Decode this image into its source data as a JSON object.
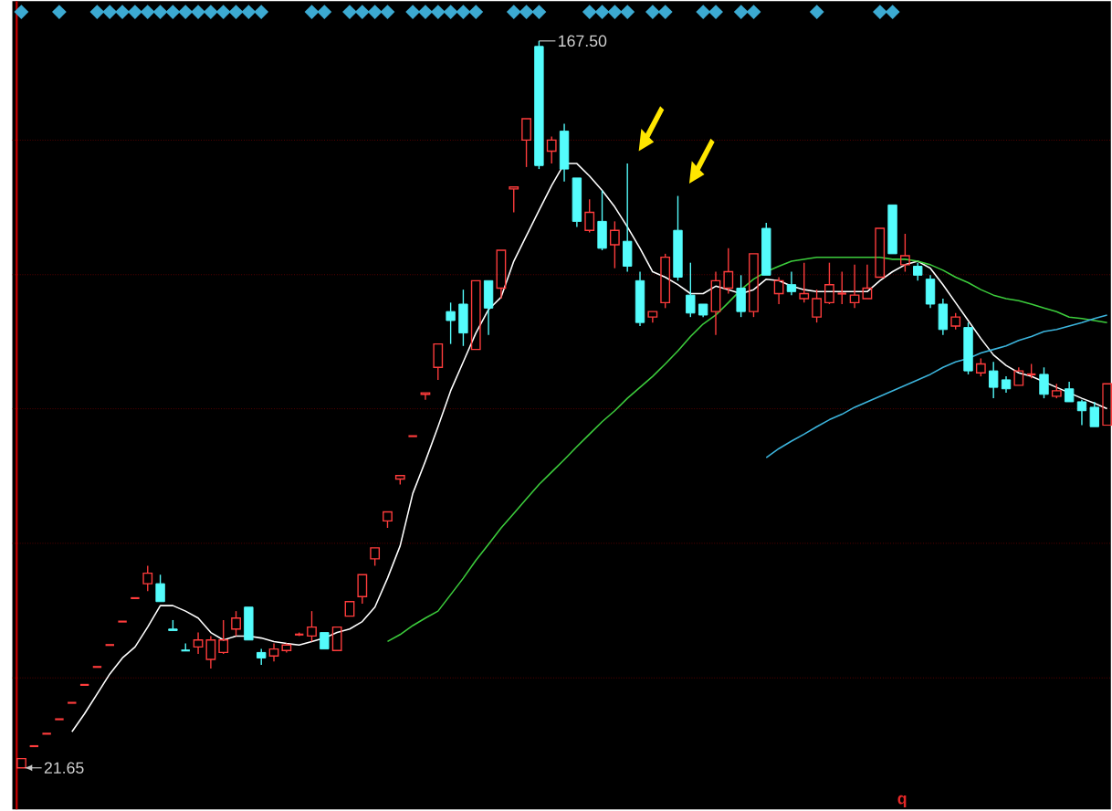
{
  "chart_data": {
    "type": "candlestick",
    "categories": [
      null,
      null,
      null,
      null,
      null,
      null,
      null,
      null,
      null,
      null,
      null,
      null,
      null,
      null,
      null,
      null,
      null,
      null,
      null,
      null,
      null,
      null,
      null,
      null,
      null,
      null,
      null,
      null,
      null,
      null,
      null,
      null,
      null,
      null,
      null,
      null,
      null,
      null,
      null,
      null,
      null,
      null,
      null,
      null,
      null,
      null,
      null,
      null,
      null,
      null,
      null,
      null,
      null,
      null,
      null,
      null,
      null,
      null,
      null,
      null,
      null,
      null,
      null,
      null,
      null,
      null,
      null,
      null,
      null,
      null,
      null,
      null,
      null,
      null,
      null,
      null,
      null,
      null,
      null,
      null,
      null,
      null,
      null,
      null,
      null,
      null,
      null
    ],
    "ylim": [
      13.3,
      175.5
    ],
    "yticks": [
      {
        "value": 39.7,
        "label": null
      },
      {
        "value": 66.7,
        "label": null
      },
      {
        "value": 93.7,
        "label": null
      },
      {
        "value": 120.6,
        "label": null
      },
      {
        "value": 147.6,
        "label": null
      }
    ],
    "grid": "y",
    "ohlc": [
      [
        21.65,
        23.5,
        21.65,
        23.5
      ],
      [
        26.0,
        26.0,
        26.0,
        26.0
      ],
      [
        28.5,
        28.5,
        28.5,
        28.5
      ],
      [
        31.4,
        31.4,
        31.4,
        31.4
      ],
      [
        34.7,
        34.7,
        34.7,
        34.7
      ],
      [
        38.3,
        38.3,
        38.3,
        38.3
      ],
      [
        41.9,
        41.9,
        41.9,
        41.9
      ],
      [
        46.3,
        46.3,
        46.3,
        46.3
      ],
      [
        51.0,
        51.0,
        51.0,
        51.0
      ],
      [
        55.7,
        55.7,
        55.7,
        55.7
      ],
      [
        58.6,
        62.2,
        57.1,
        60.7
      ],
      [
        58.6,
        60.4,
        55.0,
        55.0
      ],
      [
        49.5,
        51.3,
        49.2,
        49.2
      ],
      [
        45.2,
        46.6,
        45.2,
        45.2
      ],
      [
        45.9,
        48.8,
        44.5,
        47.3
      ],
      [
        43.4,
        48.1,
        41.6,
        47.3
      ],
      [
        44.8,
        51.3,
        44.5,
        47.3
      ],
      [
        49.5,
        53.1,
        48.1,
        51.7
      ],
      [
        53.9,
        53.9,
        47.3,
        47.3
      ],
      [
        44.8,
        45.5,
        42.3,
        43.7
      ],
      [
        44.1,
        46.6,
        43.0,
        45.5
      ],
      [
        45.2,
        46.6,
        44.8,
        46.3
      ],
      [
        48.4,
        48.8,
        48.1,
        48.4
      ],
      [
        48.1,
        53.1,
        47.0,
        49.9
      ],
      [
        48.8,
        48.8,
        45.5,
        45.5
      ],
      [
        45.2,
        49.9,
        45.2,
        49.9
      ],
      [
        52.1,
        55.0,
        52.1,
        55.0
      ],
      [
        56.0,
        60.4,
        54.6,
        60.4
      ],
      [
        63.6,
        65.8,
        62.2,
        65.8
      ],
      [
        71.2,
        73.0,
        69.8,
        73.0
      ],
      [
        79.6,
        80.3,
        78.5,
        80.3
      ],
      [
        88.2,
        88.2,
        88.2,
        88.2
      ],
      [
        96.6,
        96.9,
        95.5,
        96.9
      ],
      [
        102.0,
        106.7,
        99.5,
        106.7
      ],
      [
        113.2,
        115.0,
        106.7,
        111.4
      ],
      [
        114.7,
        117.6,
        106.3,
        108.9
      ],
      [
        105.6,
        119.4,
        105.6,
        119.4
      ],
      [
        119.4,
        119.4,
        108.5,
        113.9
      ],
      [
        117.9,
        125.5,
        115.8,
        125.5
      ],
      [
        137.8,
        138.2,
        133.1,
        138.2
      ],
      [
        147.6,
        151.9,
        142.2,
        151.9
      ],
      [
        166.4,
        167.5,
        141.8,
        142.5
      ],
      [
        145.4,
        148.3,
        142.9,
        147.6
      ],
      [
        149.4,
        150.9,
        139.3,
        141.8
      ],
      [
        140.0,
        140.0,
        130.2,
        131.3
      ],
      [
        129.5,
        135.7,
        129.1,
        133.1
      ],
      [
        131.3,
        137.5,
        125.5,
        125.9
      ],
      [
        126.6,
        131.3,
        121.9,
        129.5
      ],
      [
        127.3,
        142.9,
        121.2,
        122.3
      ],
      [
        119.4,
        121.2,
        110.3,
        111.0
      ],
      [
        112.1,
        113.2,
        111.0,
        113.2
      ],
      [
        115.0,
        124.8,
        113.9,
        124.1
      ],
      [
        129.5,
        136.4,
        119.4,
        120.1
      ],
      [
        116.5,
        123.0,
        112.1,
        112.9
      ],
      [
        114.7,
        114.7,
        112.1,
        112.5
      ],
      [
        113.2,
        121.2,
        108.5,
        119.4
      ],
      [
        117.9,
        125.9,
        116.8,
        121.2
      ],
      [
        117.9,
        120.5,
        112.1,
        113.2
      ],
      [
        113.2,
        124.8,
        112.1,
        124.8
      ],
      [
        129.9,
        131.0,
        120.5,
        120.5
      ],
      [
        116.8,
        120.1,
        114.7,
        119.4
      ],
      [
        118.6,
        121.2,
        116.5,
        117.2
      ],
      [
        115.8,
        123.0,
        115.0,
        116.8
      ],
      [
        112.1,
        117.6,
        111.0,
        115.8
      ],
      [
        115.0,
        123.0,
        114.7,
        118.6
      ],
      [
        116.8,
        121.2,
        114.7,
        116.8
      ],
      [
        115.0,
        122.6,
        113.9,
        116.5
      ],
      [
        115.8,
        122.6,
        115.8,
        117.9
      ],
      [
        120.1,
        129.9,
        120.1,
        129.9
      ],
      [
        134.6,
        134.6,
        124.8,
        124.8
      ],
      [
        122.6,
        128.8,
        121.2,
        124.4
      ],
      [
        122.3,
        123.0,
        119.4,
        120.5
      ],
      [
        119.7,
        120.5,
        113.9,
        114.7
      ],
      [
        114.7,
        115.8,
        108.5,
        109.6
      ],
      [
        110.3,
        112.9,
        109.6,
        112.1
      ],
      [
        110.0,
        111.0,
        100.6,
        101.3
      ],
      [
        100.9,
        103.8,
        100.2,
        102.7
      ],
      [
        101.3,
        103.1,
        95.8,
        98.0
      ],
      [
        99.5,
        100.2,
        96.9,
        97.7
      ],
      [
        98.4,
        102.0,
        98.4,
        101.3
      ],
      [
        100.6,
        102.7,
        99.8,
        100.6
      ],
      [
        100.6,
        102.0,
        95.8,
        96.6
      ],
      [
        96.2,
        98.7,
        95.8,
        97.3
      ],
      [
        97.7,
        99.1,
        95.1,
        95.1
      ],
      [
        95.1,
        95.5,
        90.4,
        93.3
      ],
      [
        94.0,
        95.1,
        90.1,
        90.1
      ],
      [
        90.4,
        98.7,
        90.4,
        98.7
      ]
    ],
    "colors": [
      "#ff3c3c",
      "#ff3c3c",
      "#ff3c3c",
      "#ff3c3c",
      "#ff3c3c",
      "#ff3c3c",
      "#ff3c3c",
      "#ff3c3c",
      "#ff3c3c",
      "#ff3c3c",
      "#ff3c3c",
      "#54fcfc",
      "#54fcfc",
      "#54fcfc",
      "#ff3c3c",
      "#ff3c3c",
      "#ff3c3c",
      "#ff3c3c",
      "#54fcfc",
      "#54fcfc",
      "#ff3c3c",
      "#ff3c3c",
      "#ff3c3c",
      "#ff3c3c",
      "#54fcfc",
      "#ff3c3c",
      "#ff3c3c",
      "#ff3c3c",
      "#ff3c3c",
      "#ff3c3c",
      "#ff3c3c",
      "#ff3c3c",
      "#ff3c3c",
      "#ff3c3c",
      "#54fcfc",
      "#54fcfc",
      "#ff3c3c",
      "#54fcfc",
      "#ff3c3c",
      "#ff3c3c",
      "#ff3c3c",
      "#54fcfc",
      "#ff3c3c",
      "#54fcfc",
      "#54fcfc",
      "#ff3c3c",
      "#54fcfc",
      "#ff3c3c",
      "#54fcfc",
      "#54fcfc",
      "#ff3c3c",
      "#ff3c3c",
      "#54fcfc",
      "#54fcfc",
      "#54fcfc",
      "#ff3c3c",
      "#ff3c3c",
      "#54fcfc",
      "#ff3c3c",
      "#54fcfc",
      "#ff3c3c",
      "#54fcfc",
      "#ff3c3c",
      "#ff3c3c",
      "#ff3c3c",
      "#ff3c3c",
      "#ff3c3c",
      "#ff3c3c",
      "#ff3c3c",
      "#54fcfc",
      "#ff3c3c",
      "#54fcfc",
      "#54fcfc",
      "#54fcfc",
      "#ff3c3c",
      "#54fcfc",
      "#ff3c3c",
      "#54fcfc",
      "#54fcfc",
      "#ff3c3c",
      "#ff3c3c",
      "#54fcfc",
      "#ff3c3c",
      "#54fcfc",
      "#54fcfc",
      "#54fcfc",
      "#ff3c3c"
    ],
    "series": [
      {
        "type": "line",
        "color": "#ffffff",
        "values": [
          null,
          null,
          null,
          null,
          28.9,
          32.5,
          36.5,
          40.5,
          43.7,
          45.9,
          49.9,
          54.2,
          54.2,
          53.1,
          51.7,
          48.8,
          47.3,
          48.1,
          48.1,
          47.7,
          47.0,
          46.6,
          46.3,
          47.0,
          47.7,
          48.8,
          49.5,
          51.0,
          53.9,
          59.7,
          66.2,
          76.7,
          83.2,
          90.1,
          97.3,
          103.1,
          108.9,
          113.6,
          116.1,
          123.3,
          128.4,
          133.5,
          138.5,
          142.9,
          142.9,
          140.4,
          137.5,
          134.2,
          130.2,
          125.9,
          121.2,
          120.1,
          118.6,
          116.8,
          116.8,
          118.3,
          117.6,
          116.8,
          117.6,
          119.7,
          119.4,
          118.3,
          117.6,
          117.2,
          117.2,
          117.2,
          117.2,
          117.2,
          119.4,
          121.2,
          122.6,
          123.3,
          121.9,
          118.6,
          115.0,
          111.4,
          107.8,
          104.5,
          102.4,
          100.9,
          100.2,
          99.1,
          98.0,
          96.9,
          95.8,
          94.8,
          93.7
        ]
      },
      {
        "type": "line",
        "color": "#3ccc3c",
        "values": [
          null,
          null,
          null,
          null,
          null,
          null,
          null,
          null,
          null,
          null,
          null,
          null,
          null,
          null,
          null,
          null,
          null,
          null,
          null,
          null,
          null,
          null,
          null,
          null,
          null,
          null,
          null,
          null,
          null,
          47.0,
          48.4,
          50.2,
          51.7,
          53.1,
          56.4,
          59.7,
          63.3,
          66.5,
          69.8,
          72.7,
          75.6,
          78.5,
          81.0,
          83.5,
          86.1,
          88.6,
          91.1,
          93.3,
          95.8,
          98.0,
          100.2,
          102.7,
          105.3,
          108.2,
          110.7,
          112.5,
          115.0,
          117.6,
          119.7,
          121.2,
          122.3,
          123.3,
          123.7,
          124.1,
          124.1,
          124.1,
          124.1,
          124.1,
          124.1,
          123.7,
          123.7,
          123.3,
          122.6,
          121.5,
          120.1,
          119.0,
          117.6,
          116.5,
          115.8,
          115.4,
          114.7,
          113.9,
          113.2,
          112.1,
          111.8,
          111.4,
          111.0
        ]
      },
      {
        "type": "line",
        "color": "#3cb4dc",
        "values": [
          null,
          null,
          null,
          null,
          null,
          null,
          null,
          null,
          null,
          null,
          null,
          null,
          null,
          null,
          null,
          null,
          null,
          null,
          null,
          null,
          null,
          null,
          null,
          null,
          null,
          null,
          null,
          null,
          null,
          null,
          null,
          null,
          null,
          null,
          null,
          null,
          null,
          null,
          null,
          null,
          null,
          null,
          null,
          null,
          null,
          null,
          null,
          null,
          null,
          null,
          null,
          null,
          null,
          null,
          null,
          null,
          null,
          null,
          null,
          83.9,
          85.7,
          87.2,
          88.6,
          90.1,
          91.5,
          92.6,
          94.0,
          95.1,
          96.2,
          97.3,
          98.4,
          99.5,
          100.6,
          102.0,
          103.1,
          103.8,
          104.9,
          105.6,
          106.3,
          107.4,
          108.2,
          109.2,
          109.6,
          110.3,
          111.0,
          111.8,
          112.5
        ]
      }
    ],
    "annotations": [
      "167.50",
      "21.65",
      "q"
    ]
  }
}
